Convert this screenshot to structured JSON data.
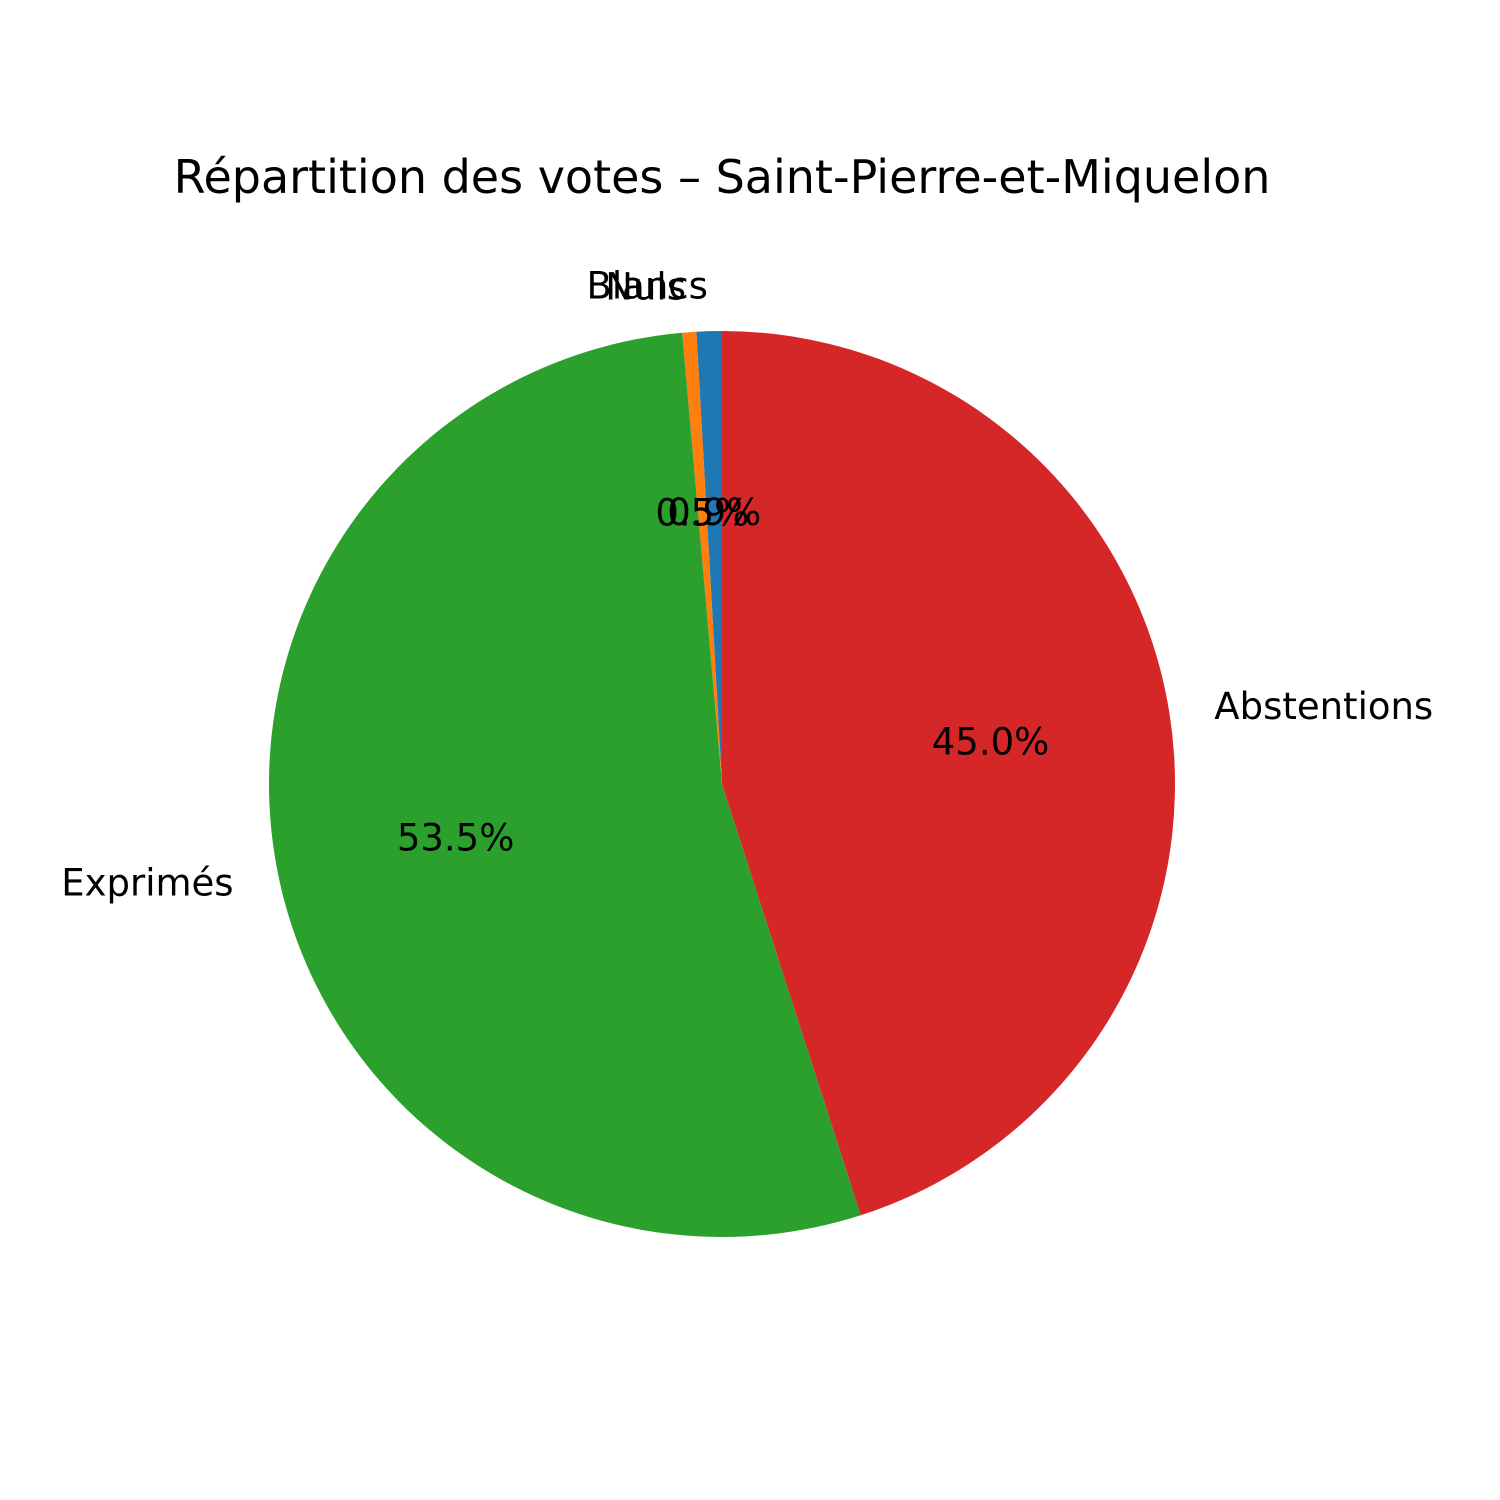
{
  "chart_data": {
    "type": "pie",
    "title": "Répartition des votes – Saint-Pierre-et-Miquelon",
    "start_angle_deg": 90,
    "direction": "counterclockwise",
    "labels": [
      "Blancs",
      "Nuls",
      "Exprimés",
      "Abstentions"
    ],
    "values": [
      0.9,
      0.5,
      53.5,
      45.0
    ],
    "value_labels": [
      "0.9%",
      "0.5%",
      "53.5%",
      "45.0%"
    ],
    "colors": [
      "#1f77b4",
      "#ff7f0e",
      "#2ca02c",
      "#d62728"
    ]
  }
}
